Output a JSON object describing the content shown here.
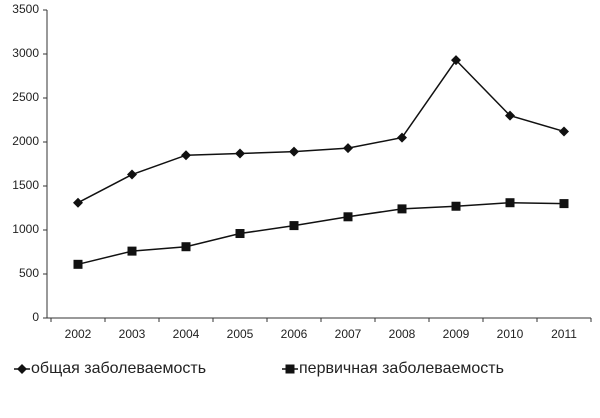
{
  "chart_data": {
    "type": "line",
    "categories": [
      "2002",
      "2003",
      "2004",
      "2005",
      "2006",
      "2007",
      "2008",
      "2009",
      "2010",
      "2011"
    ],
    "series": [
      {
        "name": "общая заболеваемость",
        "color": "#111111",
        "marker": "diamond",
        "values": [
          1310,
          1630,
          1850,
          1870,
          1890,
          1930,
          2050,
          2930,
          2300,
          2120
        ]
      },
      {
        "name": "первичная заболеваемость",
        "color": "#111111",
        "marker": "square",
        "values": [
          610,
          760,
          810,
          960,
          1050,
          1150,
          1240,
          1270,
          1310,
          1300
        ]
      }
    ],
    "ylim": [
      0,
      3500
    ],
    "yticks": [
      0,
      500,
      1000,
      1500,
      2000,
      2500,
      3000,
      3500
    ],
    "grid": false,
    "legend": "bottom"
  }
}
